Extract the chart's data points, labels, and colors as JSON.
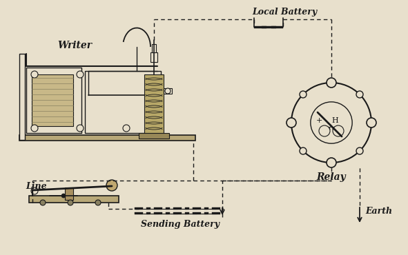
{
  "bg_color": "#e8e0cc",
  "line_color": "#1a1a1a",
  "text_color": "#1a1a1a",
  "labels": {
    "writer": "Writer",
    "line": "Line",
    "relay": "Relay",
    "local_battery": "Local Battery",
    "sending_battery": "Sending Battery",
    "earth": "Earth"
  },
  "figsize": [
    5.91,
    3.7
  ],
  "dpi": 100
}
